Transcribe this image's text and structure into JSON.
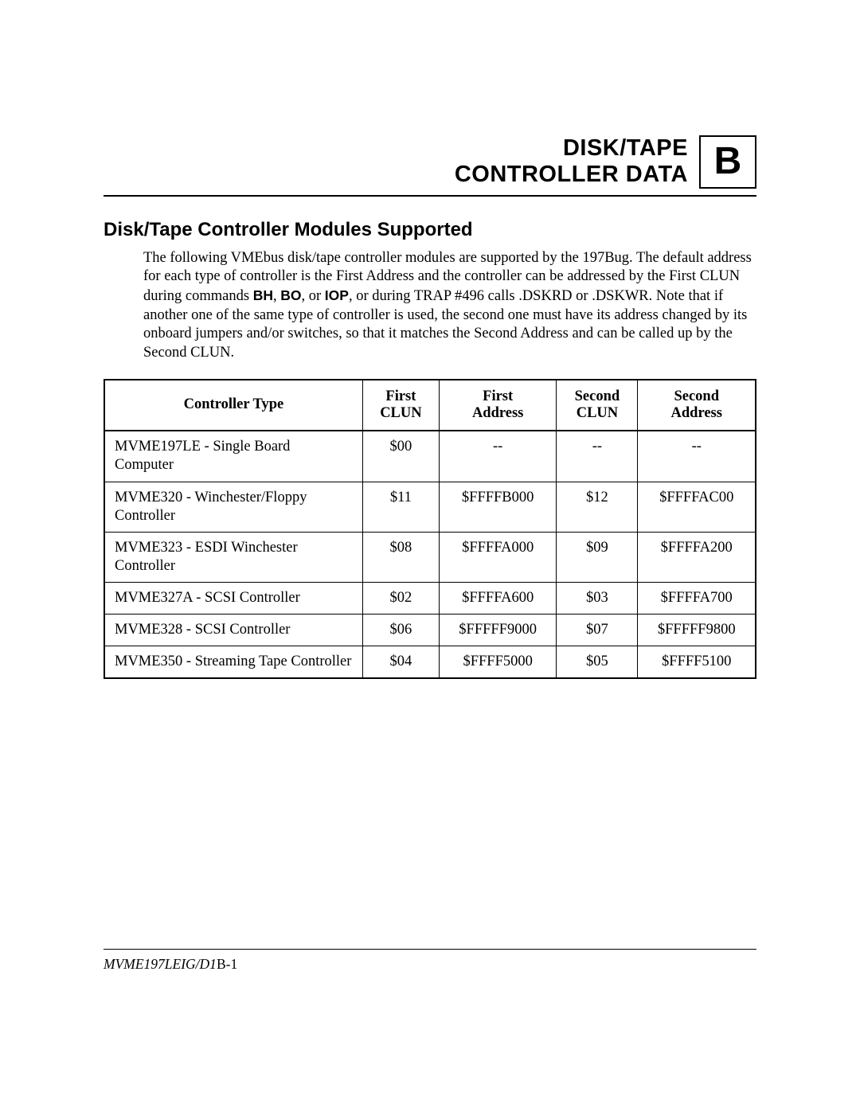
{
  "chapter": {
    "title_line1": "DISK/TAPE",
    "title_line2": "CONTROLLER DATA",
    "letter": "B"
  },
  "section_title": "Disk/Tape Controller Modules Supported",
  "paragraph": {
    "pre": "The following VMEbus disk/tape controller modules are supported by the 197Bug. The default address for each type of controller is the First Address and the controller can be addressed by the First CLUN during commands ",
    "bh": "BH",
    "sep1": ", ",
    "bo": "BO",
    "sep2": ", or ",
    "iop": "IOP",
    "post": ", or during TRAP #496 calls .DSKRD or .DSKWR.  Note that if another one of the same type of controller is used, the second one must have its address changed by its onboard jumpers and/or switches, so that it matches the Second Address and can be called up by the Second CLUN."
  },
  "table": {
    "columns": [
      {
        "label_l1": "",
        "label_l2": "Controller Type"
      },
      {
        "label_l1": "First",
        "label_l2": "CLUN"
      },
      {
        "label_l1": "First",
        "label_l2": "Address"
      },
      {
        "label_l1": "Second",
        "label_l2": "CLUN"
      },
      {
        "label_l1": "Second",
        "label_l2": "Address"
      }
    ],
    "rows": [
      [
        "MVME197LE - Single Board Computer",
        "$00",
        "--",
        "--",
        "--"
      ],
      [
        "MVME320 - Winchester/Floppy Controller",
        "$11",
        "$FFFFB000",
        "$12",
        "$FFFFAC00"
      ],
      [
        "MVME323 - ESDI Winchester Controller",
        "$08",
        "$FFFFA000",
        "$09",
        "$FFFFA200"
      ],
      [
        "MVME327A - SCSI Controller",
        "$02",
        "$FFFFA600",
        "$03",
        "$FFFFA700"
      ],
      [
        "MVME328 - SCSI Controller",
        "$06",
        "$FFFFF9000",
        "$07",
        "$FFFFF9800"
      ],
      [
        "MVME350 - Streaming Tape Controller",
        "$04",
        "$FFFF5000",
        "$05",
        "$FFFF5100"
      ]
    ]
  },
  "footer": {
    "doc": "MVME197LEIG/D1",
    "page": "B-1"
  },
  "colors": {
    "background": "#ffffff",
    "text": "#000000",
    "rule": "#000000"
  },
  "typography": {
    "chapter_title_fontsize_pt": 22,
    "chapter_letter_fontsize_pt": 36,
    "section_title_fontsize_pt": 18,
    "body_fontsize_pt": 14,
    "chapter_sans": "Helvetica",
    "body_serif": "Palatino"
  }
}
